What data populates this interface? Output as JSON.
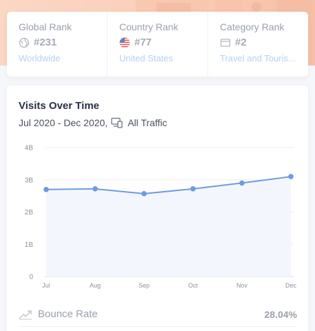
{
  "rank_card": {
    "global": {
      "label": "Global Rank",
      "value": "#231",
      "sub": "Worldwide",
      "icon": "globe-icon"
    },
    "country": {
      "label": "Country Rank",
      "value": "#77",
      "sub": "United States",
      "icon": "us-flag-icon"
    },
    "category": {
      "label": "Category Rank",
      "value": "#2",
      "sub": "Travel and Touris...",
      "icon": "category-icon"
    }
  },
  "visits": {
    "title": "Visits Over Time",
    "date_range": "Jul 2020 - Dec 2020,",
    "traffic_type": "All Traffic",
    "device_icon": "devices-icon"
  },
  "bounce": {
    "label": "Bounce Rate",
    "value": "28.04%",
    "icon": "trend-up-icon"
  },
  "colors": {
    "line": "#6c9be0",
    "area": "#f4f6fd",
    "hero": "#fbcfba"
  },
  "chart_data": {
    "type": "area",
    "title": "",
    "xlabel": "",
    "ylabel": "",
    "categories": [
      "Jul",
      "Aug",
      "Sep",
      "Oct",
      "Nov",
      "Dec"
    ],
    "y_tick_labels": [
      "0",
      "1B",
      "2B",
      "3B",
      "4B"
    ],
    "y_ticks": [
      0,
      1,
      2,
      3,
      4
    ],
    "ylim": [
      0,
      4
    ],
    "unit": "B",
    "series": [
      {
        "values": [
          2.7,
          2.72,
          2.57,
          2.72,
          2.9,
          3.1
        ]
      }
    ],
    "grid": true,
    "legend": "none"
  }
}
